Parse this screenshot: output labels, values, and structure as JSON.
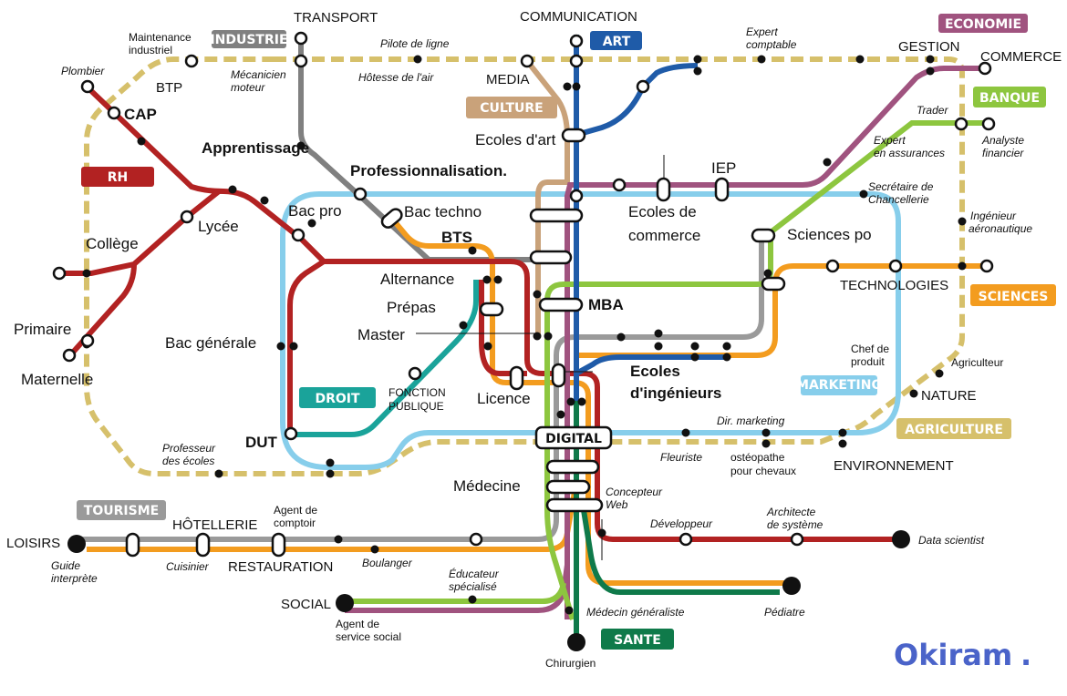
{
  "brand": {
    "name": "Okiram",
    "dot": "."
  },
  "colors": {
    "rh": "#b22222",
    "industrie": "#808080",
    "art": "#1f5ba8",
    "economie": "#a0537f",
    "culture": "#c9a27a",
    "banque": "#8dc63f",
    "droit": "#1aa39a",
    "sciences": "#f39c1f",
    "marketing": "#87ceeb",
    "agriculture": "#d6c06b",
    "tourisme": "#9a9a9a",
    "sante": "#0f7a4a",
    "dashed": "#d6c06b"
  },
  "tags": {
    "rh": "RH",
    "industrie": "INDUSTRIE",
    "art": "ART",
    "economie": "ECONOMIE",
    "culture": "CULTURE",
    "banque": "BANQUE",
    "droit": "DROIT",
    "sciences": "SCIENCES",
    "marketing": "MARKETING",
    "agriculture": "AGRICULTURE",
    "tourisme": "TOURISME",
    "sante": "SANTE",
    "digital": "DIGITAL"
  },
  "stations": {
    "cap": "CAP",
    "apprentissage": "Apprentissage",
    "professionnalisation": "Professionnalisation.",
    "lycee": "Lycée",
    "college": "Collège",
    "primaire": "Primaire",
    "maternelle": "Maternelle",
    "bac_pro": "Bac pro",
    "bac_techno": "Bac techno",
    "bts": "BTS",
    "alternance": "Alternance",
    "prepas": "Prépas",
    "master": "Master",
    "bac_generale": "Bac générale",
    "licence": "Licence",
    "dut": "DUT",
    "ecoles_art": "Ecoles d'art",
    "ecoles_commerce_1": "Ecoles de",
    "ecoles_commerce_2": "commerce",
    "iep": "IEP",
    "sciences_po": "Sciences po",
    "mba": "MBA",
    "ecoles_ing_1": "Ecoles",
    "ecoles_ing_2": "d'ingénieurs",
    "medecine": "Médecine"
  },
  "domains": {
    "transport": "TRANSPORT",
    "communication": "COMMUNICATION",
    "media": "MEDIA",
    "gestion": "GESTION",
    "commerce": "COMMERCE",
    "btp": "BTP",
    "technologies": "TECHNOLOGIES",
    "nature": "NATURE",
    "environnement": "ENVIRONNEMENT",
    "fonction_publique_1": "FONCTION",
    "fonction_publique_2": "PUBLIQUE",
    "hotellerie": "HÔTELLERIE",
    "restauration": "RESTAURATION",
    "loisirs": "LOISIRS",
    "social": "SOCIAL"
  },
  "jobs": {
    "maintenance_1": "Maintenance",
    "maintenance_2": "industriel",
    "plombier": "Plombier",
    "mecanicien_1": "Mécanicien",
    "mecanicien_2": "moteur",
    "pilote": "Pilote de ligne",
    "hotesse": "Hôtesse de l'air",
    "expert_comptable_1": "Expert",
    "expert_comptable_2": "comptable",
    "trader": "Trader",
    "expert_assurances_1": "Expert",
    "expert_assurances_2": "en assurances",
    "analyste_1": "Analyste",
    "analyste_2": "financier",
    "secretaire_1": "Secrétaire de",
    "secretaire_2": "Chancellerie",
    "ingenieur_aero_1": "Ingénieur",
    "ingenieur_aero_2": "aéronautique",
    "chef_produit_1": "Chef de",
    "chef_produit_2": "produit",
    "agriculteur": "Agriculteur",
    "dir_marketing": "Dir. marketing",
    "fleuriste": "Fleuriste",
    "osteopathe_1": "ostéopathe",
    "osteopathe_2": "pour chevaux",
    "professeur_1": "Professeur",
    "professeur_2": "des écoles",
    "agent_comptoir_1": "Agent de",
    "agent_comptoir_2": "comptoir",
    "guide_1": "Guide",
    "guide_2": "interprète",
    "cuisinier": "Cuisinier",
    "boulanger": "Boulanger",
    "educateur_1": "Éducateur",
    "educateur_2": "spécialisé",
    "agent_social_1": "Agent de",
    "agent_social_2": "service social",
    "concepteur_1": "Concepteur",
    "concepteur_2": "Web",
    "developpeur": "Développeur",
    "architecte_1": "Architecte",
    "architecte_2": "de système",
    "data_scientist": "Data scientist",
    "medecin_generaliste": "Médecin généraliste",
    "pediatre": "Pédiatre",
    "chirurgien": "Chirurgien"
  }
}
